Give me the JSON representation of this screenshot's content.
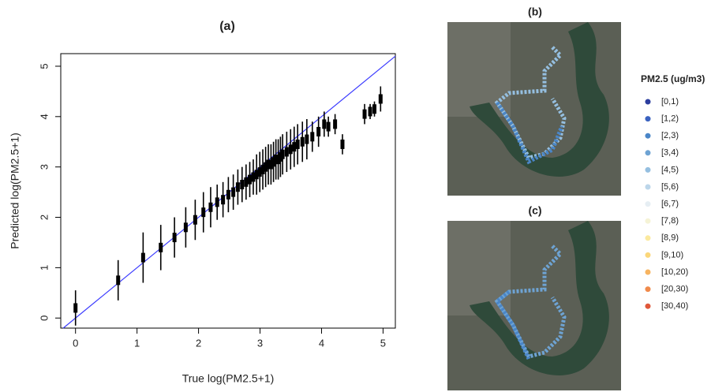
{
  "chart_data": [
    {
      "type": "scatter",
      "title": "(a)",
      "x_label": "True log(PM2.5+1)",
      "y_label": "Predicted log(PM2.5+1)",
      "xlim": [
        -0.24,
        5.2
      ],
      "ylim": [
        -0.2,
        5.25
      ],
      "xticks": [
        0,
        1,
        2,
        3,
        4,
        5
      ],
      "yticks": [
        0,
        1,
        2,
        3,
        4,
        5
      ],
      "color": "#000000",
      "identity_line_color": "#3b3bff",
      "x": [
        0,
        0.693,
        1.099,
        1.386,
        1.609,
        1.792,
        1.946,
        2.079,
        2.197,
        2.303,
        2.398,
        2.485,
        2.565,
        2.639,
        2.708,
        2.773,
        2.833,
        2.89,
        2.944,
        2.996,
        3.045,
        3.091,
        3.135,
        3.178,
        3.219,
        3.258,
        3.296,
        3.332,
        3.367,
        3.434,
        3.497,
        3.555,
        3.611,
        3.689,
        3.761,
        3.85,
        3.951,
        4.043,
        4.111,
        4.22,
        4.34,
        4.7,
        4.79,
        4.86,
        4.96
      ],
      "values": [
        0.2,
        0.75,
        1.2,
        1.4,
        1.6,
        1.8,
        1.95,
        2.1,
        2.2,
        2.3,
        2.35,
        2.45,
        2.5,
        2.6,
        2.65,
        2.7,
        2.75,
        2.8,
        2.85,
        2.9,
        2.95,
        3.0,
        3.05,
        3.05,
        3.1,
        3.15,
        3.15,
        3.2,
        3.25,
        3.3,
        3.35,
        3.4,
        3.45,
        3.5,
        3.55,
        3.6,
        3.7,
        3.85,
        3.8,
        3.85,
        3.45,
        4.05,
        4.1,
        4.15,
        4.35
      ],
      "errors": [
        0.35,
        0.4,
        0.5,
        0.45,
        0.4,
        0.4,
        0.4,
        0.4,
        0.4,
        0.35,
        0.35,
        0.35,
        0.35,
        0.35,
        0.35,
        0.35,
        0.35,
        0.35,
        0.4,
        0.4,
        0.4,
        0.4,
        0.4,
        0.4,
        0.4,
        0.4,
        0.4,
        0.4,
        0.4,
        0.4,
        0.4,
        0.4,
        0.4,
        0.4,
        0.4,
        0.3,
        0.3,
        0.25,
        0.2,
        0.2,
        0.2,
        0.2,
        0.15,
        0.15,
        0.25
      ]
    },
    {
      "type": "map",
      "title": "(b)"
    },
    {
      "type": "map",
      "title": "(c)"
    }
  ],
  "legend": {
    "title": "PM2.5 (ug/m3)",
    "items": [
      {
        "label": "[0,1)",
        "color": "#2c3e9e"
      },
      {
        "label": "[1,2)",
        "color": "#3a62c0"
      },
      {
        "label": "[2,3)",
        "color": "#4a86c8"
      },
      {
        "label": "[3,4)",
        "color": "#6ea3d3"
      },
      {
        "label": "[4,5)",
        "color": "#95bfe0"
      },
      {
        "label": "[5,6)",
        "color": "#bcd6ea"
      },
      {
        "label": "[6,7)",
        "color": "#e6eef3"
      },
      {
        "label": "[7,8)",
        "color": "#f5f3d6"
      },
      {
        "label": "[8,9)",
        "color": "#fbe99e"
      },
      {
        "label": "[9,10)",
        "color": "#fbd77a"
      },
      {
        "label": "[10,20)",
        "color": "#f7b460"
      },
      {
        "label": "[20,30)",
        "color": "#f08a4b"
      },
      {
        "label": "[30,40)",
        "color": "#e0583a"
      }
    ]
  }
}
